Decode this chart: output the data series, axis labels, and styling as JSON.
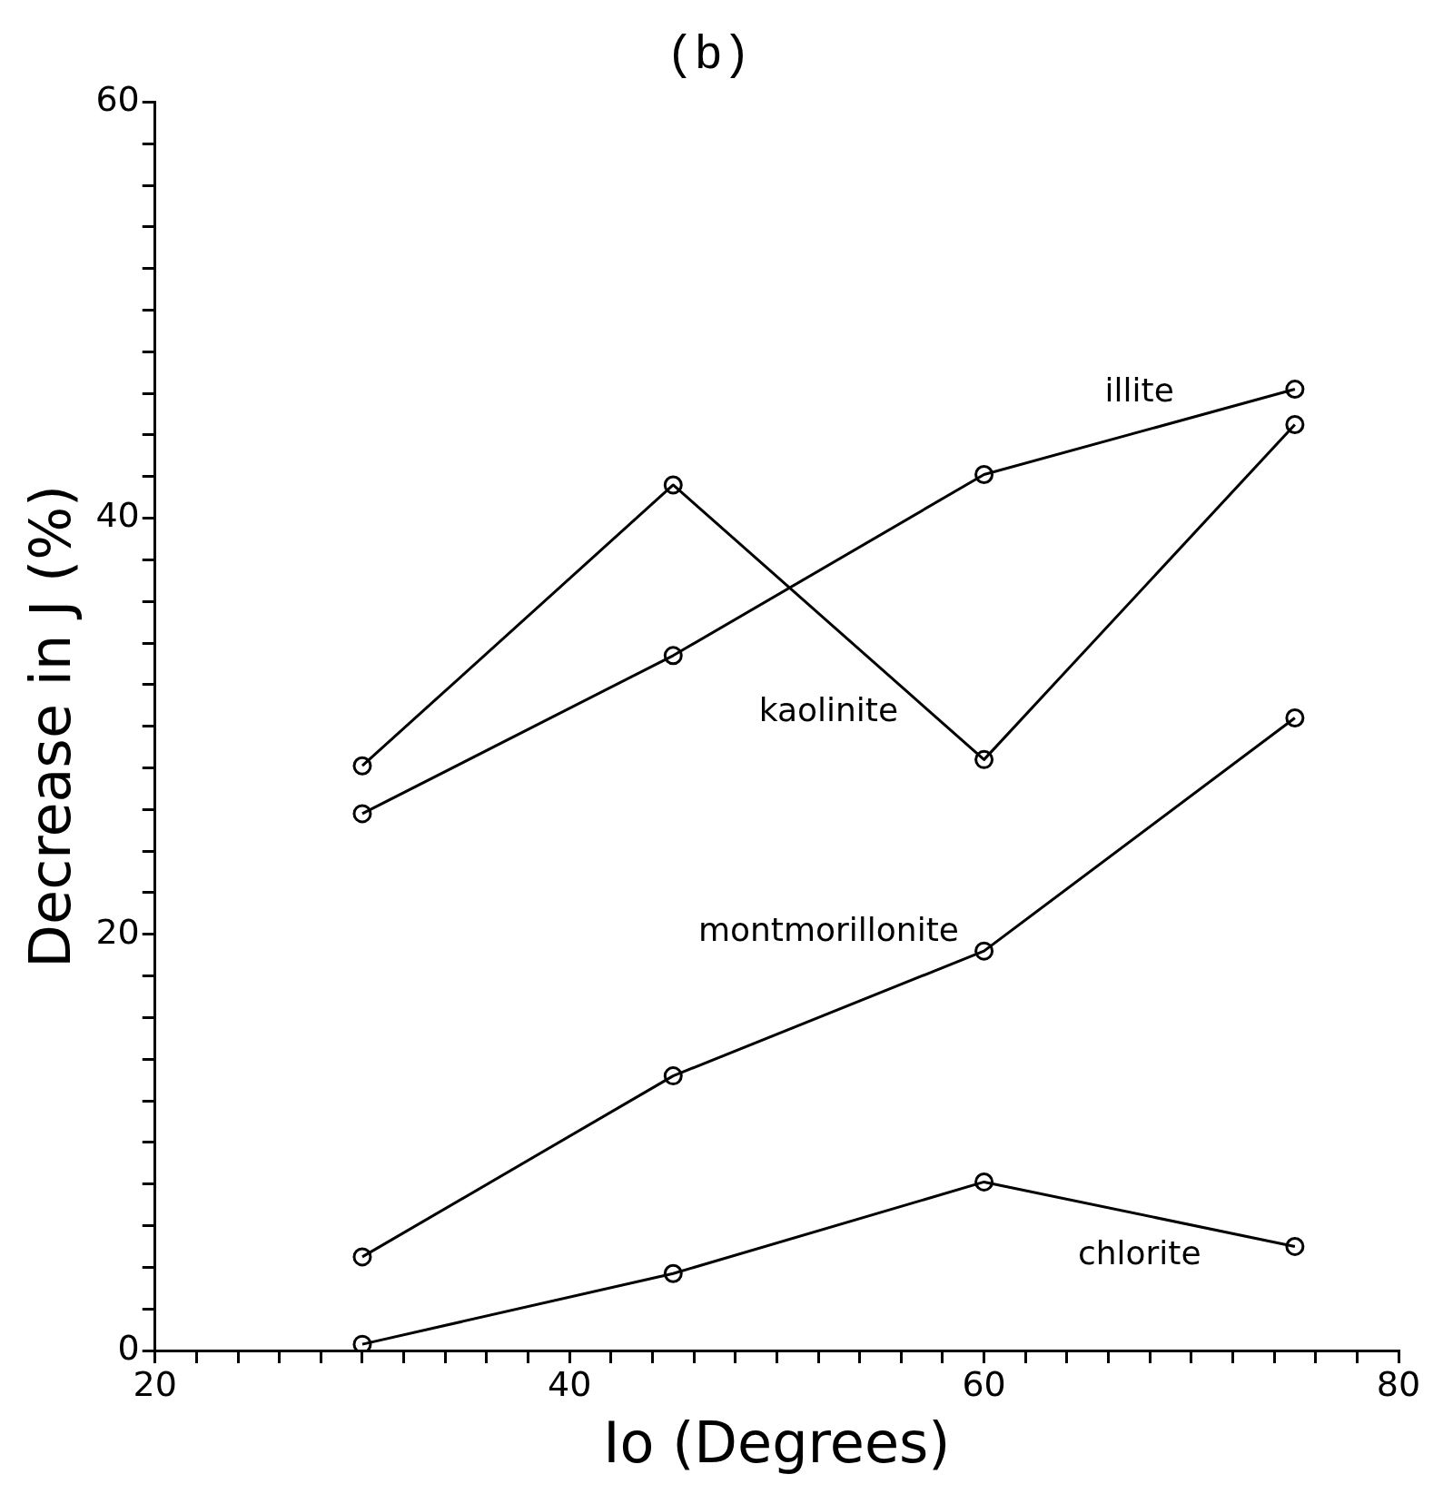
{
  "chart_data": {
    "type": "line",
    "title": "(b)",
    "xlabel": "Io (Degrees)",
    "ylabel": "Decrease in J (%)",
    "x": [
      30,
      45,
      60,
      75
    ],
    "series": [
      {
        "name": "kaolinite",
        "color": "#000000",
        "values": [
          28.1,
          41.6,
          28.4,
          44.5
        ]
      },
      {
        "name": "illite",
        "color": "#000000",
        "values": [
          25.8,
          33.4,
          42.1,
          46.2
        ]
      },
      {
        "name": "montmorillonite",
        "color": "#000000",
        "values": [
          4.5,
          13.2,
          19.2,
          30.4
        ]
      },
      {
        "name": "chlorite",
        "color": "#000000",
        "values": [
          0.3,
          3.7,
          8.1,
          5.0
        ]
      }
    ],
    "xlim": [
      20,
      80
    ],
    "xticks": [
      20,
      {
        "value": 22,
        "label": null
      },
      {
        "value": 24,
        "label": null
      },
      {
        "value": 26,
        "label": null
      },
      {
        "value": 28,
        "label": null
      },
      {
        "value": 30,
        "label": null
      },
      {
        "value": 32,
        "label": null
      },
      {
        "value": 34,
        "label": null
      },
      {
        "value": 36,
        "label": null
      },
      {
        "value": 38,
        "label": null
      },
      40,
      {
        "value": 42,
        "label": null
      },
      {
        "value": 44,
        "label": null
      },
      {
        "value": 46,
        "label": null
      },
      {
        "value": 48,
        "label": null
      },
      {
        "value": 50,
        "label": null
      },
      {
        "value": 52,
        "label": null
      },
      {
        "value": 54,
        "label": null
      },
      {
        "value": 56,
        "label": null
      },
      {
        "value": 58,
        "label": null
      },
      60,
      {
        "value": 62,
        "label": null
      },
      {
        "value": 64,
        "label": null
      },
      {
        "value": 66,
        "label": null
      },
      {
        "value": 68,
        "label": null
      },
      {
        "value": 70,
        "label": null
      },
      {
        "value": 72,
        "label": null
      },
      {
        "value": 74,
        "label": null
      },
      {
        "value": 76,
        "label": null
      },
      {
        "value": 78,
        "label": null
      },
      80
    ],
    "ylim": [
      0,
      60
    ],
    "yticks": [
      0,
      {
        "value": 2,
        "label": null
      },
      {
        "value": 4,
        "label": null
      },
      {
        "value": 6,
        "label": null
      },
      {
        "value": 8,
        "label": null
      },
      {
        "value": 10,
        "label": null
      },
      {
        "value": 12,
        "label": null
      },
      {
        "value": 14,
        "label": null
      },
      {
        "value": 16,
        "label": null
      },
      {
        "value": 18,
        "label": null
      },
      20,
      {
        "value": 22,
        "label": null
      },
      {
        "value": 24,
        "label": null
      },
      {
        "value": 26,
        "label": null
      },
      {
        "value": 28,
        "label": null
      },
      {
        "value": 30,
        "label": null
      },
      {
        "value": 32,
        "label": null
      },
      {
        "value": 34,
        "label": null
      },
      {
        "value": 36,
        "label": null
      },
      {
        "value": 38,
        "label": null
      },
      40,
      {
        "value": 42,
        "label": null
      },
      {
        "value": 44,
        "label": null
      },
      {
        "value": 46,
        "label": null
      },
      {
        "value": 48,
        "label": null
      },
      {
        "value": 50,
        "label": null
      },
      {
        "value": 52,
        "label": null
      },
      {
        "value": 54,
        "label": null
      },
      {
        "value": 56,
        "label": null
      },
      {
        "value": 58,
        "label": null
      },
      60
    ],
    "grid": false,
    "legend": false,
    "marker": "circle",
    "line_style": "solid"
  }
}
